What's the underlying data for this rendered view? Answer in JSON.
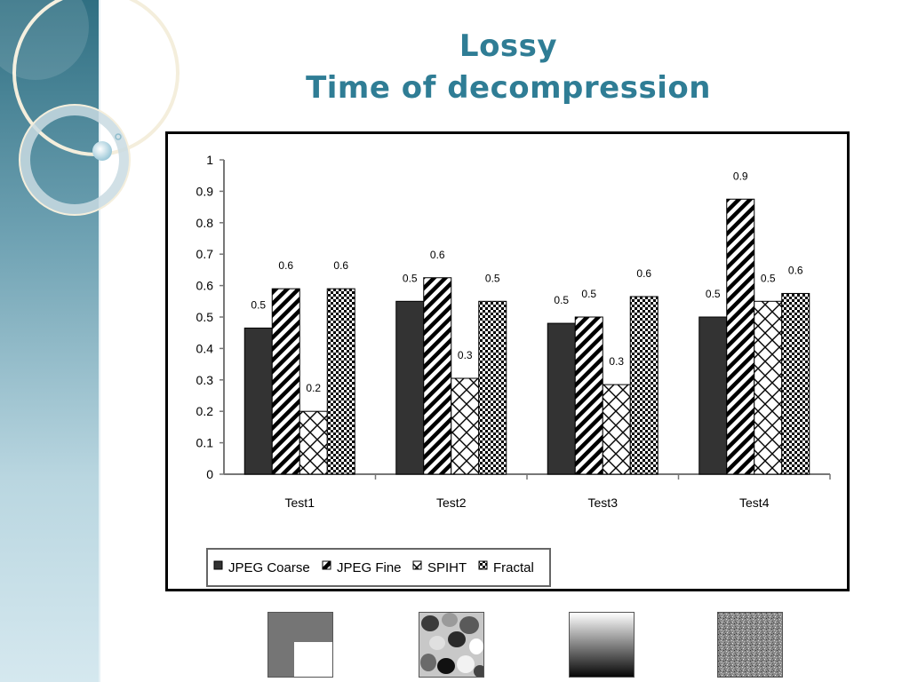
{
  "slide": {
    "title_line1": "Lossy",
    "title_line2": "Time of decompression",
    "accent_color": "#2f7d95"
  },
  "chart_data": {
    "type": "bar",
    "title": "",
    "xlabel": "",
    "ylabel": "",
    "categories": [
      "Test1",
      "Test2",
      "Test3",
      "Test4"
    ],
    "ylim": [
      0,
      1
    ],
    "yticks": [
      "0",
      "0.1",
      "0.2",
      "0.3",
      "0.4",
      "0.5",
      "0.6",
      "0.7",
      "0.8",
      "0.9",
      "1"
    ],
    "grid": false,
    "legend_position": "bottom-left",
    "series": [
      {
        "name": "JPEG Coarse",
        "values": [
          0.465,
          0.55,
          0.48,
          0.5
        ],
        "labels": [
          "0.5",
          "0.5",
          "0.5",
          "0.5"
        ],
        "pattern": "solid-dark"
      },
      {
        "name": "JPEG Fine",
        "values": [
          0.59,
          0.625,
          0.5,
          0.875
        ],
        "labels": [
          "0.6",
          "0.6",
          "0.5",
          "0.9"
        ],
        "pattern": "diagonal-stripes"
      },
      {
        "name": "SPIHT",
        "values": [
          0.2,
          0.305,
          0.285,
          0.55
        ],
        "labels": [
          "0.2",
          "0.3",
          "0.3",
          "0.5"
        ],
        "pattern": "crosshatch"
      },
      {
        "name": "Fractal",
        "values": [
          0.59,
          0.55,
          0.565,
          0.575
        ],
        "labels": [
          "0.6",
          "0.5",
          "0.6",
          "0.6"
        ],
        "pattern": "checkerboard"
      }
    ]
  },
  "thumbnails": [
    {
      "name": "blocks-image",
      "icon": "gray-square-with-white-corner"
    },
    {
      "name": "shapes-image",
      "icon": "gray-blobs"
    },
    {
      "name": "gradient-image",
      "icon": "vertical-gradient"
    },
    {
      "name": "noise-image",
      "icon": "gray-noise"
    }
  ]
}
